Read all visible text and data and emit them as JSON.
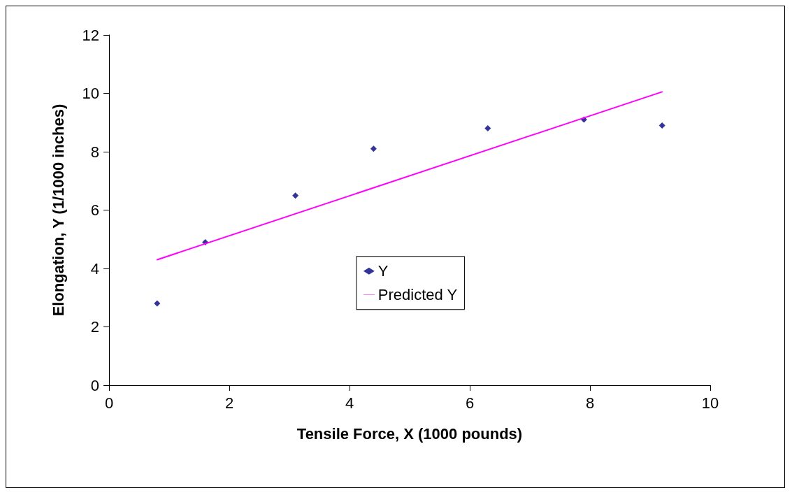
{
  "chart_data": {
    "type": "scatter",
    "xlabel": "Tensile Force, X (1000 pounds)",
    "ylabel": "Elongation, Y (1/1000 inches)",
    "xlim": [
      0,
      10
    ],
    "xticks": [
      0,
      2,
      4,
      6,
      8,
      10
    ],
    "ylim": [
      0,
      12
    ],
    "yticks": [
      0,
      2,
      4,
      6,
      8,
      10,
      12
    ],
    "grid": false,
    "legend": "center",
    "series": [
      {
        "name": "Y",
        "type": "scatter",
        "marker": "diamond",
        "color": "#000080",
        "x": [
          0.8,
          1.6,
          3.1,
          4.4,
          6.3,
          7.9,
          9.2
        ],
        "values": [
          2.8,
          4.9,
          6.5,
          8.1,
          8.8,
          9.1,
          8.9
        ]
      },
      {
        "name": "Predicted Y",
        "type": "line",
        "marker": "none",
        "line_style": "solid",
        "color": "#ff00ff",
        "x": [
          0.8,
          9.2
        ],
        "values": [
          4.3,
          10.05
        ]
      }
    ]
  }
}
